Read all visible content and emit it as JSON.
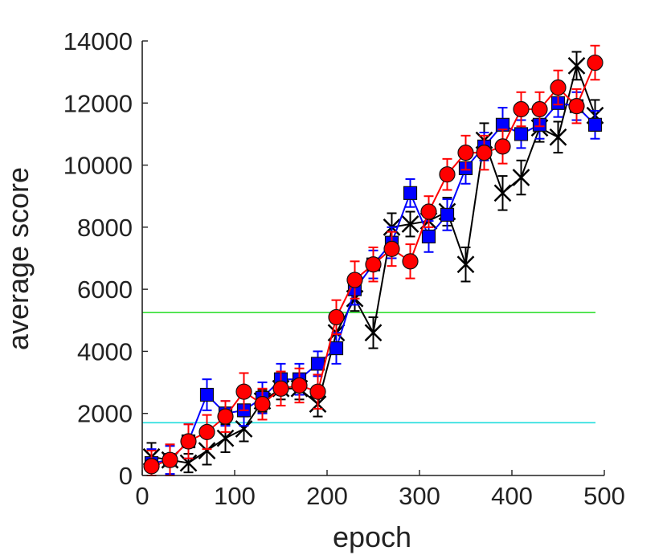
{
  "chart_data": {
    "type": "line",
    "title": "",
    "xlabel": "epoch",
    "ylabel": "average score",
    "xlim": [
      0,
      500
    ],
    "ylim": [
      0,
      14000
    ],
    "xticks": [
      0,
      100,
      200,
      300,
      400,
      500
    ],
    "yticks": [
      0,
      2000,
      4000,
      6000,
      8000,
      10000,
      12000,
      14000
    ],
    "grid": false,
    "legend": "none",
    "reference_lines": [
      {
        "y": 5250,
        "color": "#22dd22"
      },
      {
        "y": 1700,
        "color": "#22dddd"
      }
    ],
    "x": [
      10,
      30,
      50,
      70,
      90,
      110,
      130,
      150,
      170,
      190,
      210,
      230,
      250,
      270,
      290,
      310,
      330,
      350,
      370,
      390,
      410,
      430,
      450,
      470,
      490
    ],
    "series": [
      {
        "color": "#000000",
        "marker": "x",
        "values": [
          600,
          500,
          400,
          800,
          1200,
          1500,
          2400,
          2800,
          2800,
          2300,
          4600,
          5700,
          4600,
          8000,
          8100,
          8200,
          8500,
          6800,
          10800,
          9100,
          9600,
          11200,
          10900,
          13200,
          11600
        ],
        "errors": [
          450,
          500,
          300,
          450,
          450,
          400,
          350,
          350,
          350,
          400,
          400,
          400,
          500,
          450,
          400,
          450,
          450,
          550,
          550,
          550,
          550,
          450,
          500,
          450,
          500
        ]
      },
      {
        "color": "#0000ff",
        "marker": "square",
        "values": [
          400,
          500,
          1100,
          2600,
          2000,
          2100,
          2500,
          3100,
          3100,
          3600,
          4100,
          6000,
          6800,
          7500,
          9100,
          7700,
          8400,
          9900,
          10600,
          11300,
          11000,
          11300,
          12000,
          11900,
          11300
        ],
        "errors": [
          450,
          450,
          550,
          500,
          400,
          500,
          500,
          500,
          500,
          400,
          500,
          500,
          450,
          500,
          450,
          500,
          500,
          500,
          450,
          550,
          450,
          450,
          450,
          450,
          450
        ]
      },
      {
        "color": "#ff0000",
        "marker": "circle",
        "values": [
          300,
          500,
          1100,
          1400,
          1900,
          2700,
          2300,
          2800,
          2900,
          2700,
          5100,
          6300,
          6800,
          7300,
          6900,
          8500,
          9700,
          10400,
          10400,
          10600,
          11800,
          11800,
          12500,
          11900,
          13300
        ],
        "errors": [
          500,
          500,
          550,
          550,
          500,
          600,
          500,
          550,
          550,
          550,
          550,
          600,
          550,
          550,
          550,
          500,
          500,
          550,
          550,
          550,
          550,
          550,
          550,
          550,
          550
        ]
      }
    ]
  }
}
